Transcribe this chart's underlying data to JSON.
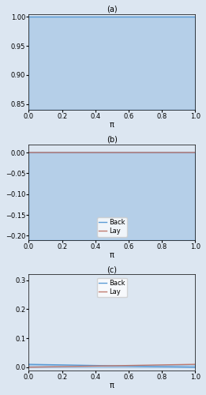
{
  "F": 0.01,
  "n_points": 2000,
  "ylim_a": [
    0.84,
    1.005
  ],
  "yticks_a": [
    0.85,
    0.9,
    0.95,
    1.0
  ],
  "ylim_b": [
    -0.21,
    0.02
  ],
  "yticks_b": [
    -0.2,
    -0.15,
    -0.1,
    -0.05,
    0.0
  ],
  "ylim_c": [
    -0.01,
    0.32
  ],
  "yticks_c": [
    0.0,
    0.1,
    0.2,
    0.3
  ],
  "bg_color": "#dce6f1",
  "back_color": "#5b9bd5",
  "lay_color": "#c07a6e",
  "line_width": 1.0,
  "fill_alpha": 0.3,
  "label_fontsize": 7,
  "tick_fontsize": 6,
  "legend_fontsize": 6,
  "xlabel": "π",
  "sub_labels": [
    "(a)",
    "(b)",
    "(c)"
  ],
  "legend_labels": [
    "Back",
    "Lay"
  ],
  "xticks": [
    0,
    0.2,
    0.4,
    0.6,
    0.8,
    1.0
  ]
}
